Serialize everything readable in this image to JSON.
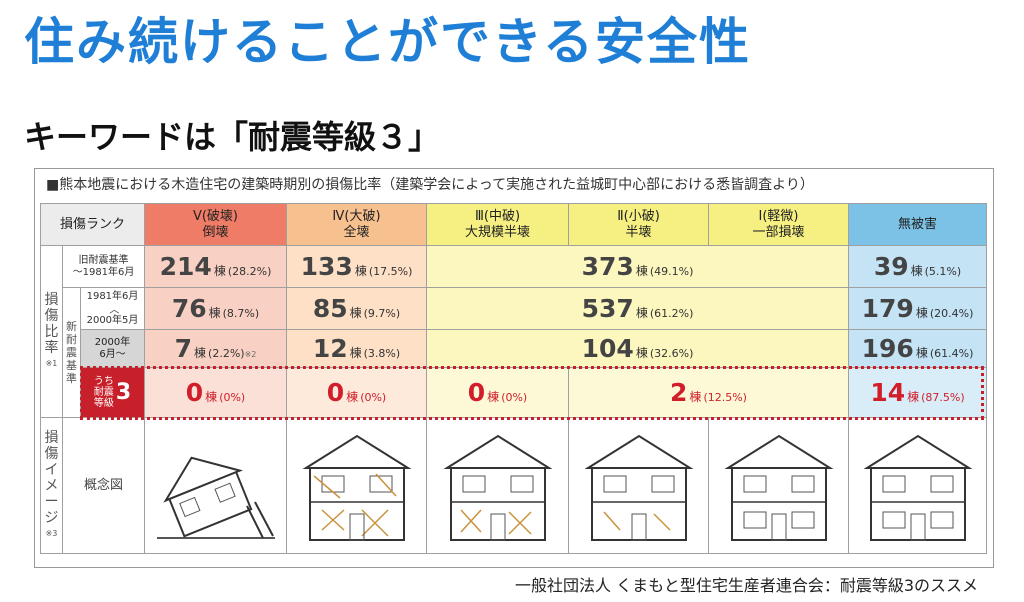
{
  "title": "住み続けることができる安全性",
  "keyword": "キーワードは「耐震等級３」",
  "caption": "■熊本地震における木造住宅の建築時期別の損傷比率（建築学会によって実施された益城町中心部における悉皆調査より）",
  "table": {
    "rank_label": "損傷ランク",
    "columns": [
      {
        "line1": "Ⅴ(破壊)",
        "line2": "倒壊"
      },
      {
        "line1": "Ⅳ(大破)",
        "line2": "全壊"
      },
      {
        "line1": "Ⅲ(中破)",
        "line2": "大規模半壊"
      },
      {
        "line1": "Ⅱ(小破)",
        "line2": "半壊"
      },
      {
        "line1": "Ⅰ(軽微)",
        "line2": "一部損壊"
      },
      {
        "line1": "無被害",
        "line2": ""
      }
    ],
    "side_ratio": "損傷比率",
    "side_ratio_note": "※1",
    "side_new": "新耐震基準",
    "side_image": "損傷イメージ",
    "side_image_note": "※3",
    "concept_label": "概念図",
    "rows": [
      {
        "label1": "旧耐震基準",
        "label2": "～1981年6月",
        "v": [
          "214",
          "133",
          "373",
          "39"
        ],
        "p": [
          "(28.2%)",
          "(17.5%)",
          "(49.1%)",
          "(5.1%)"
        ]
      },
      {
        "label1": "1981年6月",
        "label_mid": "〈",
        "label2": "2000年5月",
        "v": [
          "76",
          "85",
          "537",
          "179"
        ],
        "p": [
          "(8.7%)",
          "(9.7%)",
          "(61.2%)",
          "(20.4%)"
        ]
      },
      {
        "label1": "2000年",
        "label2": "6月～",
        "v": [
          "7",
          "12",
          "104",
          "196"
        ],
        "p": [
          "(2.2%)",
          "(3.8%)",
          "(32.6%)",
          "(61.4%)"
        ],
        "note": "※2"
      },
      {
        "label_small1": "うち",
        "label_small2": "耐震",
        "label_small3": "等級",
        "label_num": "3",
        "v": [
          "0",
          "0",
          "0",
          "2",
          "14"
        ],
        "p": [
          "(0%)",
          "(0%)",
          "(0%)",
          "(12.5%)",
          "(87.5%)"
        ]
      }
    ],
    "unit": "棟"
  },
  "footer": "一般社団法人 くまもと型住宅生産者連合会：耐震等級3のススメ",
  "colors": {
    "title": "#1f7fd6",
    "highlight": "#c8202a"
  }
}
